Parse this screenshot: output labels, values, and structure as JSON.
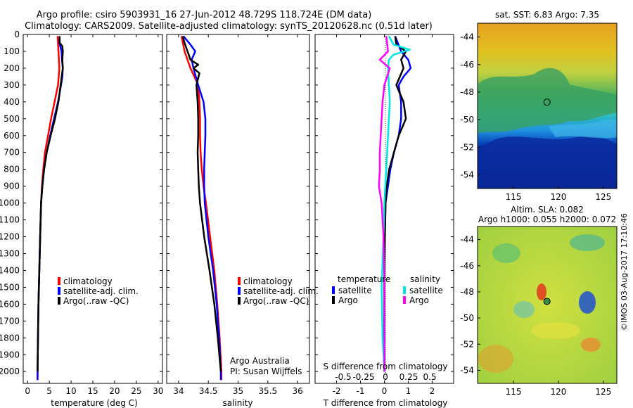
{
  "title_line1": "Argo profile: csiro 5903931_16 27-Jun-2012 48.729S 118.724E (DM data)",
  "title_line2": "Climatology: CARS2009. Satellite-adjusted climatology: synTS_20120628.nc (0.51d later)",
  "colors": {
    "climatology": "#ff0000",
    "satellite": "#0000ff",
    "argo": "#000000",
    "sal_satellite": "#00e5e5",
    "sal_argo": "#ff00ff"
  },
  "legend": {
    "climatology": "climatology",
    "satellite_adj": "satellite-adj. clim.",
    "argo_raw": "Argo(..raw -QC)"
  },
  "diff_legend": {
    "temperature_head": "temperature",
    "salinity_head": "salinity",
    "satellite": "satellite",
    "argo": "Argo"
  },
  "credits": {
    "line1": "Argo Australia",
    "line2": "PI: Susan Wijffels"
  },
  "map_sst": {
    "title": "sat. SST: 6.83 Argo: 7.35",
    "yticks": [
      "-44",
      "-46",
      "-48",
      "-50",
      "-52",
      "-54"
    ],
    "xticks": [
      "115",
      "120",
      "125"
    ],
    "float_lon": 118.724,
    "float_lat": -48.729
  },
  "map_sla": {
    "title_line1": "Altim. SLA: 0.082",
    "title_line2": "Argo h1000: 0.055 h2000: 0.072",
    "yticks": [
      "-44",
      "-46",
      "-48",
      "-50",
      "-52",
      "-54"
    ],
    "xticks": [
      "115",
      "120",
      "125"
    ],
    "float_lon": 118.724,
    "float_lat": -48.729
  },
  "watermark": "©IMOS 03-Aug-2017 17:10:46",
  "chart_data": [
    {
      "type": "line",
      "panel": "temperature",
      "xlabel": "temperature (deg C)",
      "xlim": [
        -1,
        31
      ],
      "xticks": [
        "0",
        "5",
        "10",
        "15",
        "20",
        "25",
        "30"
      ],
      "ylim": [
        2070,
        0
      ],
      "yticks": [
        "0",
        "100",
        "200",
        "300",
        "400",
        "500",
        "600",
        "700",
        "800",
        "900",
        "1000",
        "1100",
        "1200",
        "1300",
        "1400",
        "1500",
        "1600",
        "1700",
        "1800",
        "1900",
        "2000"
      ],
      "series": [
        {
          "name": "climatology",
          "y": [
            10,
            100,
            200,
            300,
            400,
            500,
            600,
            700,
            800,
            900,
            1000,
            1200,
            1400,
            1600,
            1800,
            2000,
            2050
          ],
          "x": [
            6.9,
            7.1,
            7.3,
            7.0,
            6.2,
            5.4,
            4.7,
            4.0,
            3.6,
            3.3,
            3.1,
            2.9,
            2.7,
            2.5,
            2.4,
            2.3,
            2.3
          ]
        },
        {
          "name": "satellite-adj. clim.",
          "y": [
            10,
            50,
            100,
            150,
            200,
            250,
            300,
            400,
            500,
            600,
            700,
            800,
            900,
            1000,
            1200,
            1400,
            1600,
            1800,
            2000,
            2050
          ],
          "x": [
            7.35,
            7.3,
            7.8,
            7.9,
            8.1,
            8.0,
            7.7,
            7.0,
            6.1,
            5.2,
            4.4,
            3.8,
            3.4,
            3.1,
            2.9,
            2.7,
            2.5,
            2.4,
            2.3,
            2.3
          ]
        },
        {
          "name": "Argo(..raw -QC)",
          "y": [
            10,
            50,
            70,
            100,
            150,
            200,
            240,
            300,
            400,
            500,
            600,
            700,
            800,
            900,
            1000,
            1200,
            1400,
            1600,
            1800,
            2000
          ],
          "x": [
            7.35,
            7.4,
            8.0,
            8.1,
            8.0,
            8.1,
            7.9,
            7.6,
            7.1,
            6.3,
            5.3,
            4.4,
            3.8,
            3.4,
            3.1,
            2.9,
            2.7,
            2.5,
            2.4,
            2.3
          ]
        }
      ]
    },
    {
      "type": "line",
      "panel": "salinity",
      "xlabel": "salinity",
      "xlim": [
        33.8,
        36.2
      ],
      "xticks": [
        "34",
        "34.5",
        "35",
        "35.5",
        "36"
      ],
      "ylim": [
        2070,
        0
      ],
      "series": [
        {
          "name": "climatology",
          "y": [
            10,
            100,
            200,
            300,
            400,
            500,
            600,
            700,
            800,
            900,
            1000,
            1200,
            1400,
            1600,
            1800,
            2000,
            2050
          ],
          "x": [
            34.05,
            34.1,
            34.2,
            34.33,
            34.35,
            34.36,
            34.36,
            34.37,
            34.39,
            34.42,
            34.46,
            34.53,
            34.6,
            34.65,
            34.69,
            34.72,
            34.72
          ]
        },
        {
          "name": "satellite-adj. clim.",
          "y": [
            10,
            60,
            100,
            150,
            200,
            300,
            400,
            500,
            600,
            700,
            800,
            900,
            1000,
            1200,
            1400,
            1600,
            1800,
            2000,
            2050
          ],
          "x": [
            34.08,
            34.2,
            34.28,
            34.22,
            34.25,
            34.33,
            34.42,
            34.45,
            34.45,
            34.44,
            34.43,
            34.43,
            34.44,
            34.5,
            34.58,
            34.64,
            34.68,
            34.71,
            34.71
          ]
        },
        {
          "name": "Argo(..raw -QC)",
          "y": [
            10,
            50,
            100,
            150,
            180,
            200,
            230,
            300,
            400,
            500,
            600,
            700,
            800,
            900,
            1000,
            1200,
            1400,
            1600,
            1800,
            2000
          ],
          "x": [
            34.07,
            34.1,
            34.15,
            34.2,
            34.33,
            34.25,
            34.35,
            34.3,
            34.32,
            34.33,
            34.33,
            34.32,
            34.33,
            34.34,
            34.36,
            34.43,
            34.52,
            34.6,
            34.66,
            34.71
          ]
        }
      ]
    },
    {
      "type": "line",
      "panel": "differences",
      "xlabel": "T difference from climatology",
      "xlabel_top": "S difference from climatology",
      "xlim_T": [
        -2.9,
        2.9
      ],
      "xticks_T": [
        "-2",
        "-1",
        "0",
        "1",
        "2"
      ],
      "xticks_S": [
        "-0.5",
        "-0.25",
        "0",
        "0.25",
        "0.5"
      ],
      "ylim": [
        2070,
        0
      ],
      "series": [
        {
          "name": "temperature satellite",
          "y": [
            10,
            100,
            150,
            200,
            250,
            300,
            400,
            500,
            600,
            700,
            800,
            900,
            1000,
            1200,
            1400,
            1600,
            1800,
            2000
          ],
          "x": [
            0.45,
            0.7,
            1.0,
            1.1,
            0.8,
            0.6,
            0.7,
            0.7,
            0.6,
            0.4,
            0.25,
            0.15,
            0.05,
            0.02,
            0.0,
            0.0,
            0.0,
            0.0
          ]
        },
        {
          "name": "temperature Argo",
          "y": [
            10,
            60,
            100,
            150,
            200,
            300,
            400,
            500,
            600,
            700,
            800,
            900,
            1000,
            1200,
            1400,
            1600,
            1800,
            2000
          ],
          "x": [
            0.45,
            0.5,
            0.9,
            0.7,
            0.8,
            0.5,
            0.8,
            0.9,
            0.6,
            0.4,
            0.2,
            0.1,
            0.05,
            0.02,
            0.0,
            0.0,
            0.0,
            0.0
          ]
        },
        {
          "name": "salinity satellite",
          "y": [
            10,
            60,
            90,
            120,
            150,
            200,
            300,
            400,
            600,
            800,
            1000,
            1200,
            1500,
            1800,
            2000
          ],
          "x": [
            0.05,
            0.1,
            0.28,
            0.1,
            0.05,
            0.04,
            0.05,
            0.06,
            0.04,
            0.02,
            0.0,
            -0.01,
            -0.03,
            -0.02,
            0.0
          ]
        },
        {
          "name": "salinity Argo",
          "y": [
            10,
            100,
            150,
            200,
            300,
            400,
            500,
            600,
            700,
            800,
            900,
            1000,
            1200,
            1500,
            1800,
            2000
          ],
          "x": [
            0.02,
            0.04,
            -0.05,
            0.06,
            0.0,
            -0.02,
            -0.03,
            -0.04,
            -0.05,
            -0.05,
            -0.06,
            -0.03,
            -0.01,
            0.0,
            0.0,
            0.0
          ]
        }
      ]
    }
  ]
}
